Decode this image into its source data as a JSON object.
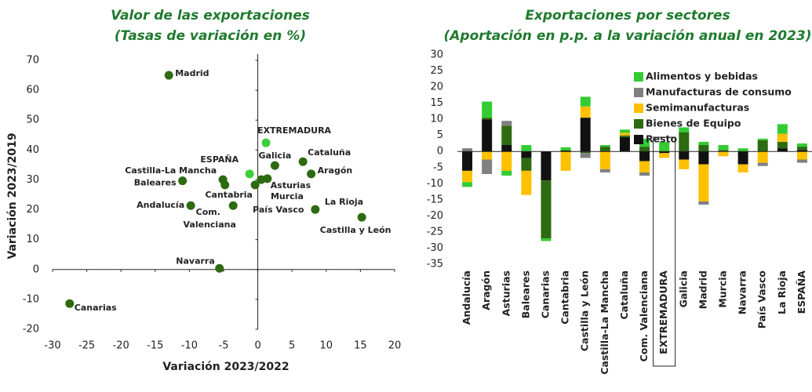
{
  "chart_data": [
    {
      "type": "scatter",
      "title": "Valor de las exportaciones",
      "subtitle": "(Tasas de variación en %)",
      "x_label": "Variación 2023/2022",
      "y_label": "Variación 2023/2019",
      "labels": [
        "Madrid",
        "EXTREMADURA",
        "ESPAÑA",
        "Galicia",
        "Cataluña",
        "Aragón",
        "Asturias",
        "Murcia",
        "País Vasco",
        "Castilla-La Mancha",
        "Baleares",
        "Cantabria",
        "Com. Valenciana",
        "Andalucía",
        "La Rioja",
        "Castilla y León",
        "Navarra",
        "Canarias"
      ],
      "x": [
        -13,
        1.2,
        -1.2,
        2.5,
        6.6,
        7.8,
        1.4,
        0.5,
        -0.4,
        -5.1,
        -11,
        -4.8,
        -3.6,
        -9.8,
        8.4,
        15.2,
        -5.6,
        -27.5
      ],
      "y": [
        65,
        42.4,
        32,
        34.8,
        36.1,
        32,
        30.4,
        30.1,
        28.3,
        30.1,
        29.7,
        28.3,
        21.4,
        21.4,
        20.1,
        17.5,
        0.4,
        -11.4
      ],
      "colors": [
        "#2d6a12",
        "#3ccf3c",
        "#3ccf3c",
        "#2d6a12",
        "#2d6a12",
        "#2d6a12",
        "#2d6a12",
        "#2d6a12",
        "#2d6a12",
        "#2d6a12",
        "#2d6a12",
        "#2d6a12",
        "#2d6a12",
        "#2d6a12",
        "#2d6a12",
        "#2d6a12",
        "#2d6a12",
        "#2d6a12"
      ],
      "xlim": [
        -30,
        20
      ],
      "xticks": [
        -30,
        -25,
        -20,
        -15,
        -10,
        -5,
        0,
        5,
        10,
        15,
        20
      ],
      "ylim": [
        -20,
        70
      ],
      "yticks": [
        -20,
        -10,
        0,
        10,
        20,
        30,
        40,
        50,
        60,
        70
      ]
    },
    {
      "type": "stacked_bar",
      "title": "Exportaciones por sectores",
      "subtitle": "(Aportación en p.p. a la variación anual en 2023)",
      "categories": [
        "Andalucía",
        "Aragón",
        "Asturias",
        "Baleares",
        "Canarias",
        "Cantabria",
        "Castilla y León",
        "Castilla-La Mancha",
        "Cataluña",
        "Com. Valenciana",
        "EXTREMADURA",
        "Galicia",
        "Madrid",
        "Murcia",
        "Navarra",
        "País Vasco",
        "La Rioja",
        "ESPAÑA"
      ],
      "series": [
        {
          "name": "Resto",
          "color": "#111111",
          "values": [
            -6,
            10,
            2,
            -2,
            -9,
            0.3,
            10.5,
            0.2,
            4.5,
            -3,
            -0.5,
            -2.5,
            -4,
            0,
            -4,
            0,
            1,
            0.5
          ]
        },
        {
          "name": "Bienes de Equipo",
          "color": "#2d6a12",
          "values": [
            0,
            0.5,
            6,
            -4,
            -18,
            0,
            -0.5,
            1.3,
            0.5,
            1.5,
            0,
            6,
            2,
            0.5,
            0,
            3.5,
            2,
            1
          ]
        },
        {
          "name": "Semimanufacturas",
          "color": "#ffc000",
          "values": [
            -3.5,
            -2.5,
            -6,
            -7.5,
            0,
            -6,
            3.5,
            -5.5,
            0.8,
            -3.5,
            -1.5,
            -3,
            -11.5,
            -1.5,
            -2.5,
            -3.5,
            2.5,
            -2.5
          ]
        },
        {
          "name": "Manufacturas de consumo",
          "color": "#808080",
          "values": [
            1,
            -4.5,
            1.5,
            0,
            0,
            0,
            -1.5,
            -1,
            0,
            -1,
            0,
            0,
            -1,
            0,
            0,
            -1,
            0,
            -1
          ]
        },
        {
          "name": "Alimentos y bebidas",
          "color": "#33cc33",
          "values": [
            -1.5,
            5,
            -1.5,
            2,
            -0.8,
            1,
            3,
            0.5,
            1,
            2.5,
            3,
            1.5,
            1,
            1.5,
            1,
            0.5,
            3,
            1
          ]
        }
      ],
      "ylim": [
        -35,
        30
      ],
      "yticks": [
        -35,
        -30,
        -25,
        -20,
        -15,
        -10,
        -5,
        0,
        5,
        10,
        15,
        20,
        25,
        30
      ]
    }
  ]
}
